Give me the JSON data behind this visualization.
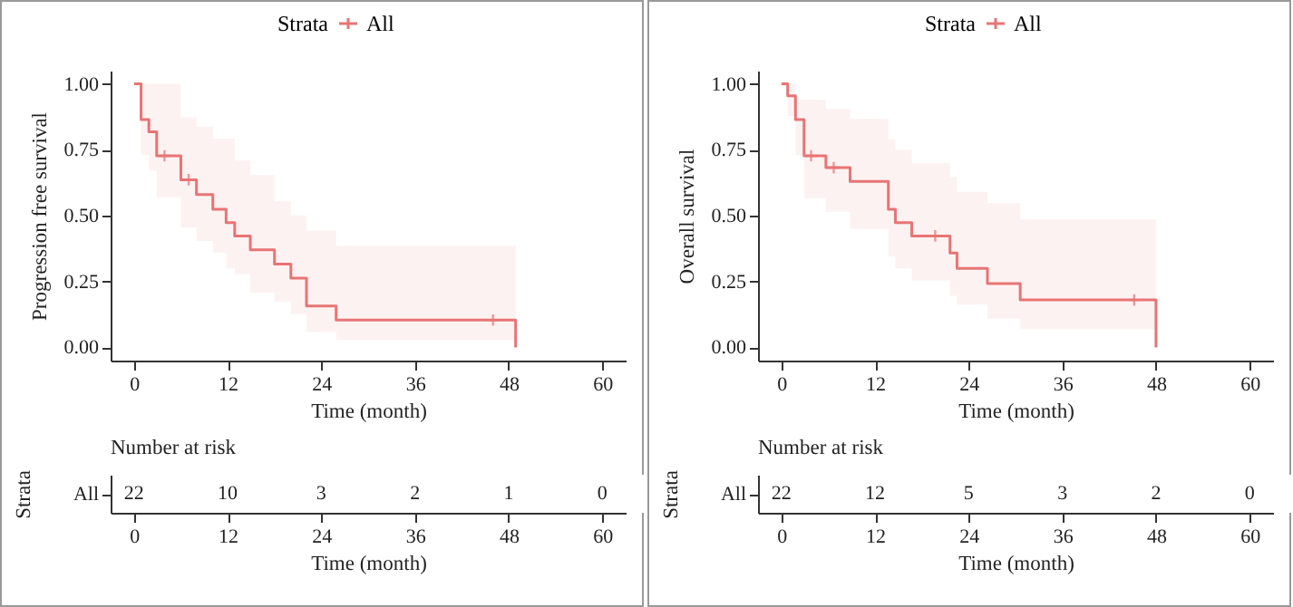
{
  "chart_data": [
    {
      "type": "step",
      "xlabel": "Time (month)",
      "ylabel": "Progression free survival",
      "legend_title": "Strata",
      "legend": "top",
      "xlim": [
        -3,
        63
      ],
      "xticks": [
        0,
        12,
        24,
        36,
        48,
        60
      ],
      "ylim": [
        -0.05,
        1.05
      ],
      "yticks": [
        {
          "value": 0,
          "label": "0.00"
        },
        {
          "value": 0.25,
          "label": "0.25"
        },
        {
          "value": 0.5,
          "label": "0.50"
        },
        {
          "value": 0.75,
          "label": "0.75"
        },
        {
          "value": 1,
          "label": "1.00"
        }
      ],
      "series": [
        {
          "name": "All",
          "color": "#e87474",
          "x": [
            0,
            0.9,
            1.9,
            2.9,
            6.0,
            8.0,
            10.1,
            11.8,
            12.9,
            14.9,
            18.0,
            20.1,
            22.1,
            25.9,
            48.9
          ],
          "values": [
            1,
            0.864,
            0.818,
            0.727,
            0.636,
            0.58,
            0.524,
            0.473,
            0.423,
            0.37,
            0.316,
            0.263,
            0.157,
            0.104,
            0
          ],
          "lower": [
            1,
            0.73,
            0.67,
            0.57,
            0.455,
            0.404,
            0.358,
            0.3,
            0.277,
            0.208,
            0.173,
            0.127,
            0.058,
            0.028,
            0.028
          ],
          "upper": [
            1,
            1,
            1,
            1,
            0.873,
            0.838,
            0.792,
            0.792,
            0.709,
            0.654,
            0.554,
            0.5,
            0.443,
            0.386,
            0.386
          ]
        },
        {
          "type": "scatter",
          "marker": "cross",
          "color": "#e87474",
          "x": [
            3.9,
            7.0,
            46.0
          ],
          "values": [
            0.727,
            0.636,
            0.104
          ]
        }
      ]
    },
    {
      "type": "heatmap",
      "title": "Number at risk",
      "xlabel": "Time (month)",
      "ylabel": "Strata",
      "data_labels": true,
      "categories": [
        "0",
        "12",
        "24",
        "36",
        "48",
        "60"
      ],
      "y_categories": [
        "All"
      ],
      "cells": [
        [
          22,
          10,
          3,
          2,
          1,
          0
        ]
      ]
    },
    {
      "type": "step",
      "xlabel": "Time (month)",
      "ylabel": "Overall survival",
      "legend_title": "Strata",
      "legend": "top",
      "xlim": [
        -3,
        63
      ],
      "xticks": [
        0,
        12,
        24,
        36,
        48,
        60
      ],
      "ylim": [
        -0.05,
        1.05
      ],
      "yticks": [
        {
          "value": 0,
          "label": "0.00"
        },
        {
          "value": 0.25,
          "label": "0.25"
        },
        {
          "value": 0.5,
          "label": "0.50"
        },
        {
          "value": 0.75,
          "label": "0.75"
        },
        {
          "value": 1,
          "label": "1.00"
        }
      ],
      "series": [
        {
          "name": "All",
          "color": "#e87474",
          "x": [
            0,
            0.8,
            1.8,
            2.9,
            5.7,
            8.8,
            13.7,
            14.6,
            16.7,
            21.6,
            22.5,
            26.4,
            30.6,
            48.0
          ],
          "values": [
            1,
            0.955,
            0.864,
            0.727,
            0.682,
            0.63,
            0.524,
            0.473,
            0.423,
            0.358,
            0.3,
            0.242,
            0.18,
            0
          ],
          "lower": [
            1,
            0.878,
            0.73,
            0.566,
            0.515,
            0.45,
            0.346,
            0.3,
            0.254,
            0.196,
            0.162,
            0.109,
            0.069,
            0.069
          ],
          "upper": [
            1,
            1,
            0.94,
            0.94,
            0.905,
            0.868,
            0.79,
            0.75,
            0.7,
            0.647,
            0.59,
            0.547,
            0.485,
            0.485
          ]
        },
        {
          "type": "scatter",
          "marker": "cross",
          "color": "#e87474",
          "x": [
            3.8,
            6.7,
            19.7,
            45.2
          ],
          "values": [
            0.727,
            0.682,
            0.423,
            0.18
          ]
        }
      ]
    },
    {
      "type": "heatmap",
      "title": "Number at risk",
      "xlabel": "Time (month)",
      "ylabel": "Strata",
      "data_labels": true,
      "categories": [
        "0",
        "12",
        "24",
        "36",
        "48",
        "60"
      ],
      "y_categories": [
        "All"
      ],
      "cells": [
        [
          22,
          12,
          5,
          3,
          2,
          0
        ]
      ]
    }
  ]
}
